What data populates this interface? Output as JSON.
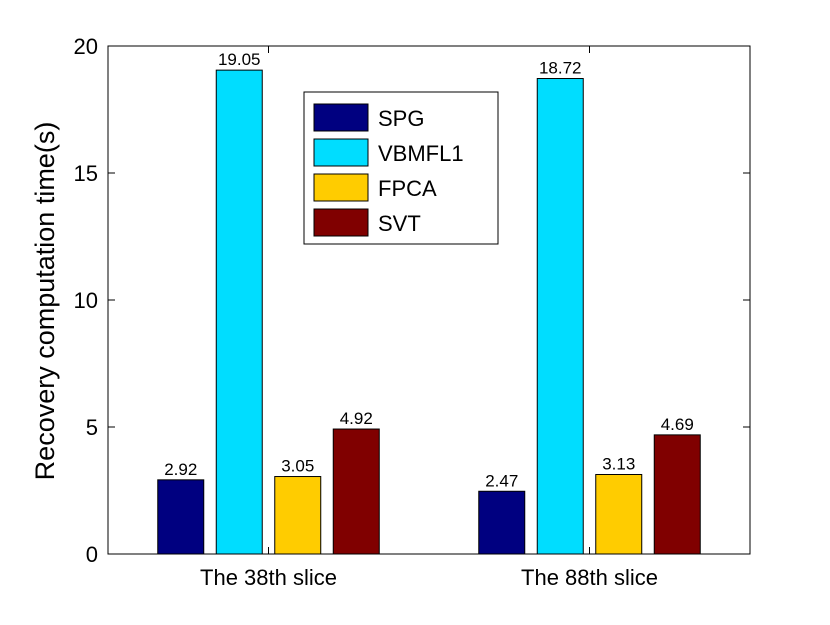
{
  "chart_data": {
    "type": "bar",
    "categories": [
      "The 38th slice",
      "The 88th slice"
    ],
    "series": [
      {
        "name": "SPG",
        "color": "#000080",
        "values": [
          2.92,
          2.47
        ]
      },
      {
        "name": "VBMFL1",
        "color": "#00ddff",
        "values": [
          19.05,
          18.72
        ]
      },
      {
        "name": "FPCA",
        "color": "#ffcc00",
        "values": [
          3.05,
          3.13
        ]
      },
      {
        "name": "SVT",
        "color": "#800000",
        "values": [
          4.92,
          4.69
        ]
      }
    ],
    "data_labels": [
      [
        "2.92",
        "2.47"
      ],
      [
        "19.05",
        "18.72"
      ],
      [
        "3.05",
        "3.13"
      ],
      [
        "4.92",
        "4.69"
      ]
    ],
    "title": "",
    "xlabel": "",
    "ylabel": "Recovery computation time(s)",
    "ylim": [
      0,
      20
    ],
    "yticks": [
      0,
      5,
      10,
      15,
      20
    ],
    "ytick_labels": [
      "0",
      "5",
      "10",
      "15",
      "20"
    ],
    "grid": false,
    "legend_position": "top-center"
  }
}
